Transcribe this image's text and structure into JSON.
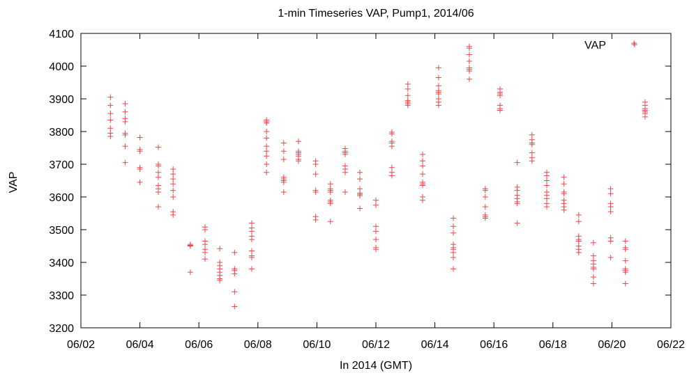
{
  "chart_data": {
    "type": "scatter",
    "title": "1-min Timeseries VAP, Pump1, 2014/06",
    "xlabel": "In 2014 (GMT)",
    "ylabel": "VAP",
    "xlim": [
      "2014-06-02",
      "2014-06-22"
    ],
    "ylim": [
      3200,
      4100
    ],
    "x_ticks": [
      "06/02",
      "06/04",
      "06/06",
      "06/08",
      "06/10",
      "06/12",
      "06/14",
      "06/16",
      "06/18",
      "06/20",
      "06/22"
    ],
    "y_ticks": [
      3200,
      3300,
      3400,
      3500,
      3600,
      3700,
      3800,
      3900,
      4000,
      4100
    ],
    "grid": false,
    "legend_position": "top-right",
    "series": [
      {
        "name": "VAP",
        "color": "#e8474a",
        "marker": "plus",
        "groups": [
          {
            "date": "2014-06-03 00:00",
            "values": [
              3905,
              3880,
              3855,
              3835,
              3810,
              3795,
              3785
            ]
          },
          {
            "date": "2014-06-03 12:00",
            "values": [
              3885,
              3860,
              3840,
              3830,
              3795,
              3790,
              3755,
              3705
            ]
          },
          {
            "date": "2014-06-04 00:00",
            "values": [
              3782,
              3745,
              3740,
              3690,
              3685,
              3645
            ]
          },
          {
            "date": "2014-06-04 15:00",
            "values": [
              3752,
              3700,
              3695,
              3675,
              3660,
              3635,
              3625,
              3615,
              3570
            ]
          },
          {
            "date": "2014-06-05 03:00",
            "values": [
              3685,
              3670,
              3655,
              3640,
              3620,
              3600,
              3555,
              3545
            ]
          },
          {
            "date": "2014-06-05 17:00",
            "values": [
              3455,
              3452,
              3450,
              3370
            ]
          },
          {
            "date": "2014-06-06 05:00",
            "values": [
              3508,
              3500,
              3465,
              3455,
              3440,
              3430,
              3410
            ]
          },
          {
            "date": "2014-06-06 17:00",
            "values": [
              3442,
              3400,
              3390,
              3380,
              3370,
              3360,
              3350,
              3345
            ]
          },
          {
            "date": "2014-06-07 05:00",
            "values": [
              3430,
              3380,
              3375,
              3365,
              3310,
              3265
            ]
          },
          {
            "date": "2014-06-07 19:00",
            "values": [
              3520,
              3505,
              3495,
              3480,
              3470,
              3435,
              3420,
              3415,
              3380
            ]
          },
          {
            "date": "2014-06-08 07:00",
            "values": [
              3835,
              3830,
              3826,
              3800,
              3780,
              3755,
              3740,
              3725,
              3700,
              3675
            ]
          },
          {
            "date": "2014-06-08 21:00",
            "values": [
              3765,
              3740,
              3715,
              3660,
              3655,
              3650,
              3645,
              3615
            ]
          },
          {
            "date": "2014-06-09 09:00",
            "values": [
              3770,
              3740,
              3735,
              3730,
              3725,
              3715,
              3710
            ]
          },
          {
            "date": "2014-06-09 23:00",
            "values": [
              3710,
              3700,
              3670,
              3620,
              3615,
              3540,
              3530
            ]
          },
          {
            "date": "2014-06-10 11:00",
            "values": [
              3640,
              3625,
              3620,
              3615,
              3590,
              3585,
              3580,
              3525
            ]
          },
          {
            "date": "2014-06-10 23:00",
            "values": [
              3748,
              3740,
              3735,
              3730,
              3695,
              3685,
              3675,
              3615
            ]
          },
          {
            "date": "2014-06-11 11:00",
            "values": [
              3675,
              3655,
              3625,
              3612,
              3608,
              3604,
              3565
            ]
          },
          {
            "date": "2014-06-12 00:00",
            "values": [
              3590,
              3575,
              3510,
              3495,
              3470,
              3445,
              3440
            ]
          },
          {
            "date": "2014-06-12 13:00",
            "values": [
              3798,
              3793,
              3770,
              3765,
              3755,
              3690,
              3675,
              3665
            ]
          },
          {
            "date": "2014-06-13 02:00",
            "values": [
              3945,
              3930,
              3910,
              3895,
              3890,
              3885,
              3880
            ]
          },
          {
            "date": "2014-06-13 14:00",
            "values": [
              3730,
              3710,
              3695,
              3670,
              3645,
              3640,
              3635,
              3600,
              3590
            ]
          },
          {
            "date": "2014-06-14 03:00",
            "values": [
              3995,
              3965,
              3940,
              3925,
              3920,
              3915,
              3900,
              3890,
              3880
            ]
          },
          {
            "date": "2014-06-14 15:00",
            "values": [
              3535,
              3510,
              3490,
              3455,
              3445,
              3440,
              3430,
              3415,
              3380
            ]
          },
          {
            "date": "2014-06-15 04:00",
            "values": [
              4060,
              4055,
              4035,
              4015,
              3995,
              3990,
              3985,
              3960
            ]
          },
          {
            "date": "2014-06-15 17:00",
            "values": [
              3625,
              3620,
              3600,
              3570,
              3545,
              3540,
              3535
            ]
          },
          {
            "date": "2014-06-16 05:00",
            "values": [
              3930,
              3920,
              3915,
              3910,
              3880,
              3870,
              3865
            ]
          },
          {
            "date": "2014-06-16 19:00",
            "values": [
              3705,
              3630,
              3620,
              3605,
              3595,
              3585,
              3580,
              3520
            ]
          },
          {
            "date": "2014-06-17 07:00",
            "values": [
              3790,
              3775,
              3765,
              3760,
              3735,
              3720,
              3710
            ]
          },
          {
            "date": "2014-06-17 19:00",
            "values": [
              3675,
              3665,
              3650,
              3635,
              3615,
              3605,
              3595,
              3580,
              3570
            ]
          },
          {
            "date": "2014-06-18 09:00",
            "values": [
              3660,
              3640,
              3615,
              3610,
              3590,
              3580,
              3570,
              3560
            ]
          },
          {
            "date": "2014-06-18 21:00",
            "values": [
              3545,
              3525,
              3480,
              3470,
              3465,
              3450,
              3440,
              3430
            ]
          },
          {
            "date": "2014-06-19 09:00",
            "values": [
              3460,
              3420,
              3405,
              3395,
              3385,
              3380,
              3355,
              3335
            ]
          },
          {
            "date": "2014-06-19 23:00",
            "values": [
              3625,
              3610,
              3580,
              3570,
              3555,
              3475,
              3465,
              3415
            ]
          },
          {
            "date": "2014-06-20 11:00",
            "values": [
              3465,
              3445,
              3440,
              3405,
              3380,
              3375,
              3370,
              3335
            ]
          },
          {
            "date": "2014-06-20 18:00",
            "values": [
              4070
            ]
          },
          {
            "date": "2014-06-21 03:00",
            "values": [
              3890,
              3880,
              3870,
              3865,
              3860,
              3855,
              3845
            ]
          }
        ]
      }
    ]
  }
}
